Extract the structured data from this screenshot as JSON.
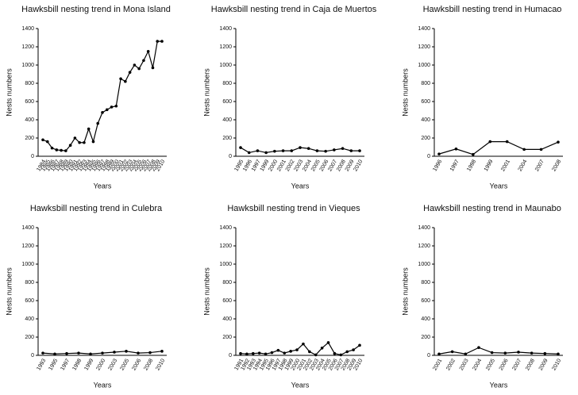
{
  "chart_data": [
    {
      "type": "line",
      "title": "Hawksbill nesting trend in Mona Island",
      "x_label": "Years",
      "y_label": "Nests numbers",
      "categories": [
        "1984",
        "1985",
        "1986",
        "1987",
        "1988",
        "1989",
        "1990",
        "1991",
        "1992",
        "1993",
        "1994",
        "1995",
        "1996",
        "1997",
        "1998",
        "1999",
        "2000",
        "2001",
        "2002",
        "2003",
        "2004",
        "2005",
        "2006",
        "2007",
        "2008",
        "2009",
        "2010"
      ],
      "values": [
        180,
        160,
        90,
        70,
        65,
        60,
        120,
        200,
        150,
        150,
        300,
        160,
        360,
        480,
        510,
        540,
        550,
        850,
        820,
        920,
        1000,
        960,
        1050,
        1150,
        970,
        1260,
        1260
      ],
      "color": "#000000",
      "ylim": [
        0,
        1400
      ],
      "yticks": [
        0,
        200,
        400,
        600,
        800,
        1000,
        1200,
        1400
      ]
    },
    {
      "type": "line",
      "title": "Hawksbill nesting trend in Caja de Muertos",
      "x_label": "Years",
      "y_label": "Nests numbers",
      "categories": [
        "1995",
        "1996",
        "1997",
        "1999",
        "2000",
        "2001",
        "2002",
        "2003",
        "2004",
        "2005",
        "2006",
        "2007",
        "2008",
        "2009",
        "2010"
      ],
      "values": [
        95,
        40,
        60,
        40,
        55,
        60,
        60,
        95,
        85,
        60,
        55,
        70,
        85,
        60,
        60
      ],
      "color": "#000000",
      "ylim": [
        0,
        1400
      ],
      "yticks": [
        0,
        200,
        400,
        600,
        800,
        1000,
        1200,
        1400
      ]
    },
    {
      "type": "line",
      "title": "Hawksbill nesting trend in Humacao",
      "x_label": "Years",
      "y_label": "Nests numbers",
      "categories": [
        "1996",
        "1997",
        "1998",
        "1999",
        "2001",
        "2004",
        "2007",
        "2008"
      ],
      "values": [
        25,
        80,
        20,
        160,
        160,
        75,
        75,
        155
      ],
      "color": "#000000",
      "ylim": [
        0,
        1400
      ],
      "yticks": [
        0,
        200,
        400,
        600,
        800,
        1000,
        1200,
        1400
      ]
    },
    {
      "type": "line",
      "title": "Hawksbill nesting trend in Culebra",
      "x_label": "Years",
      "y_label": "Nests numbers",
      "categories": [
        "1993",
        "1995",
        "1997",
        "1998",
        "1999",
        "2000",
        "2003",
        "2005",
        "2006",
        "2008",
        "2010"
      ],
      "values": [
        25,
        15,
        20,
        25,
        15,
        25,
        35,
        45,
        25,
        30,
        45
      ],
      "color": "#000000",
      "ylim": [
        0,
        1400
      ],
      "yticks": [
        0,
        200,
        400,
        600,
        800,
        1000,
        1200,
        1400
      ]
    },
    {
      "type": "line",
      "title": "Hawksbill nesting trend in Vieques",
      "x_label": "Years",
      "y_label": "Nests numbers",
      "categories": [
        "1991",
        "1992",
        "1993",
        "1994",
        "1995",
        "1996",
        "1997",
        "1998",
        "1999",
        "2000",
        "2001",
        "2002",
        "2003",
        "2004",
        "2005",
        "2006",
        "2007",
        "2008",
        "2009",
        "2010"
      ],
      "values": [
        20,
        15,
        20,
        25,
        15,
        30,
        55,
        25,
        45,
        60,
        125,
        40,
        5,
        80,
        140,
        20,
        5,
        40,
        60,
        110
      ],
      "color": "#000000",
      "ylim": [
        0,
        1400
      ],
      "yticks": [
        0,
        200,
        400,
        600,
        800,
        1000,
        1200,
        1400
      ]
    },
    {
      "type": "line",
      "title": "Hawksbill nesting trend in Maunabo",
      "x_label": "Years",
      "y_label": "Nests numbers",
      "categories": [
        "2001",
        "2002",
        "2003",
        "2004",
        "2005",
        "2006",
        "2007",
        "2008",
        "2009",
        "2010"
      ],
      "values": [
        15,
        40,
        15,
        85,
        30,
        25,
        35,
        25,
        20,
        15
      ],
      "color": "#000000",
      "ylim": [
        0,
        1400
      ],
      "yticks": [
        0,
        200,
        400,
        600,
        800,
        1000,
        1200,
        1400
      ]
    }
  ]
}
